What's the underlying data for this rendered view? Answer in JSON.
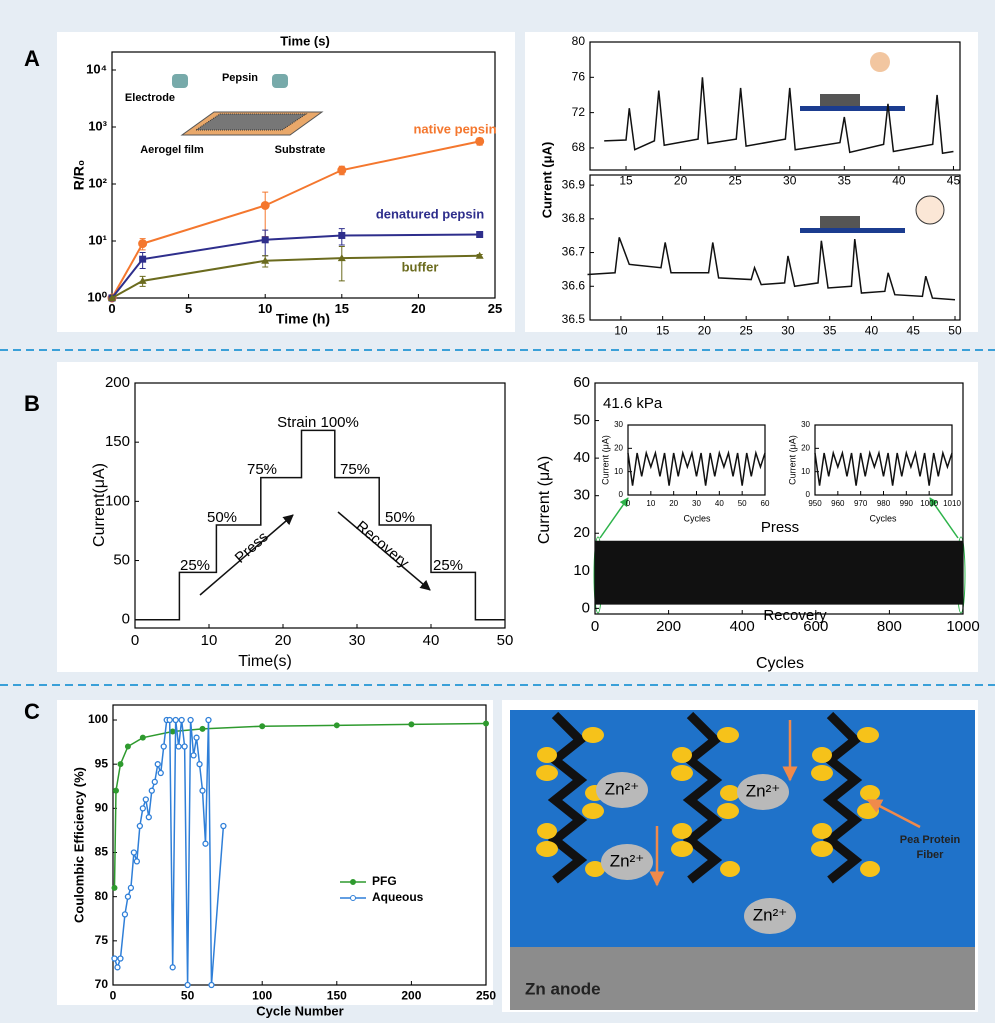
{
  "panels": [
    "A",
    "B",
    "C"
  ],
  "chart_data": [
    {
      "type": "line",
      "top_axis_label": "Time (s)",
      "x_label": "Time (h)",
      "y_label": "R/R₀",
      "log_y": true,
      "xlim": [
        0,
        25
      ],
      "xticks": [
        0,
        5,
        10,
        15,
        20,
        25
      ],
      "ylim": [
        1,
        10000
      ],
      "yticks": [
        {
          "value": 1,
          "label": "10⁰"
        },
        {
          "value": 10,
          "label": "10¹"
        },
        {
          "value": 100,
          "label": "10²"
        },
        {
          "value": 1000,
          "label": "10³"
        },
        {
          "value": 10000,
          "label": "10⁴"
        }
      ],
      "annotations": [
        "Pepsin",
        "Electrode",
        "Aerogel film",
        "Substrate"
      ],
      "series": [
        {
          "name": "native pepsin",
          "color": "#f4772e",
          "marker": "circle",
          "x": [
            0,
            2,
            10,
            15,
            24
          ],
          "values": [
            1,
            9,
            42,
            175,
            560
          ],
          "errors": [
            0,
            2,
            30,
            30,
            80
          ]
        },
        {
          "name": "denatured pepsin",
          "color": "#2e2e8c",
          "marker": "square",
          "x": [
            0,
            2,
            10,
            15,
            24
          ],
          "values": [
            1,
            4.8,
            10.5,
            12.5,
            13
          ],
          "errors": [
            0,
            1.5,
            5,
            4,
            0
          ]
        },
        {
          "name": "buffer",
          "color": "#6b6b1e",
          "marker": "triangle",
          "x": [
            0,
            2,
            10,
            15,
            24
          ],
          "values": [
            1,
            2,
            4.5,
            5,
            5.5
          ],
          "errors": [
            0,
            0.4,
            1,
            3,
            0.3
          ]
        }
      ]
    },
    {
      "type": "line",
      "y_label": "Current (μA)",
      "xlim": [
        11.7,
        45.6
      ],
      "xticks": [
        15,
        20,
        25,
        30,
        35,
        40,
        45
      ],
      "ylim": [
        65.5,
        80
      ],
      "yticks": [
        68,
        72,
        76,
        80
      ],
      "series": [
        {
          "color": "#111111",
          "marker": "none",
          "x": [
            13,
            15,
            15.3,
            15.8,
            17.6,
            18,
            18.5,
            21.6,
            22,
            22.5,
            25.1,
            25.5,
            26,
            29.6,
            30,
            30.5,
            34.6,
            35,
            35.5,
            38.6,
            39,
            39.5,
            43.1,
            43.5,
            44,
            45
          ],
          "values": [
            68.8,
            68.9,
            72.5,
            67.8,
            68.8,
            74.5,
            68.3,
            69,
            76,
            68.5,
            69,
            74.8,
            68.2,
            69,
            74.8,
            67.8,
            68.6,
            71.5,
            67.5,
            68.4,
            73,
            67.6,
            68.4,
            74,
            67.4,
            67.6
          ]
        }
      ]
    },
    {
      "type": "line",
      "xlim": [
        6.3,
        50.6
      ],
      "xticks": [
        10,
        15,
        20,
        25,
        30,
        35,
        40,
        45,
        50
      ],
      "ylim": [
        36.5,
        36.93
      ],
      "yticks": [
        36.5,
        36.6,
        36.7,
        36.8,
        36.9
      ],
      "series": [
        {
          "color": "#111111",
          "marker": "none",
          "x": [
            6,
            9.3,
            9.8,
            11,
            14.8,
            15.3,
            16,
            20.5,
            21,
            21.7,
            25.6,
            26,
            26.8,
            29.6,
            30,
            30.8,
            33.6,
            34,
            34.8,
            37.6,
            38,
            38.8,
            41.6,
            42,
            42.8,
            46.1,
            46.5,
            47.3,
            50
          ],
          "values": [
            36.635,
            36.64,
            36.745,
            36.665,
            36.655,
            36.73,
            36.64,
            36.64,
            36.73,
            36.625,
            36.62,
            36.655,
            36.605,
            36.61,
            36.69,
            36.6,
            36.61,
            36.735,
            36.595,
            36.6,
            36.74,
            36.58,
            36.585,
            36.64,
            36.575,
            36.57,
            36.63,
            36.565,
            36.56
          ]
        }
      ]
    },
    {
      "type": "line",
      "x_label": "Time(s)",
      "y_label": "Current(μA)",
      "xlim": [
        0,
        50
      ],
      "xticks": [
        0,
        10,
        20,
        30,
        40,
        50
      ],
      "ylim": [
        -7,
        200
      ],
      "yticks": [
        0,
        50,
        100,
        150,
        200
      ],
      "annotations": [
        "Strain 100%",
        "75%",
        "50%",
        "25%",
        "75%",
        "50%",
        "25%",
        "Press",
        "Recovery"
      ],
      "series": [
        {
          "color": "#111111",
          "marker": "none",
          "x": [
            0,
            6,
            6,
            11,
            11,
            17,
            17,
            22.5,
            22.5,
            27,
            27,
            33,
            33,
            40,
            40,
            46,
            46,
            50
          ],
          "values": [
            0,
            0,
            40,
            40,
            80,
            80,
            120,
            120,
            160,
            160,
            120,
            120,
            80,
            80,
            40,
            40,
            0,
            0
          ]
        }
      ]
    },
    {
      "type": "band",
      "x_label": "Cycles",
      "y_label": "Current (μA)",
      "xlim": [
        0,
        1000
      ],
      "xticks": [
        0,
        200,
        400,
        600,
        800,
        1000
      ],
      "ylim": [
        -1.5,
        60
      ],
      "yticks": [
        0,
        10,
        20,
        30,
        40,
        50,
        60
      ],
      "annotations": [
        "41.6 kPa",
        "Press",
        "Recovery"
      ],
      "band": {
        "color": "#111111",
        "x": [
          0,
          1000
        ],
        "low": [
          1,
          1
        ],
        "high": [
          18,
          18
        ]
      }
    },
    {
      "type": "line",
      "x_label": "Cycles",
      "y_label": "Current (μA)",
      "xlim": [
        0,
        60
      ],
      "xticks": [
        0,
        10,
        20,
        30,
        40,
        50,
        60
      ],
      "ylim": [
        0,
        30
      ],
      "yticks": [
        0,
        10,
        20,
        30
      ],
      "series": [
        {
          "color": "#111111",
          "marker": "none",
          "x": [
            0,
            2,
            4,
            6,
            8,
            10,
            12,
            14,
            16,
            18,
            20,
            22,
            24,
            26,
            28,
            30,
            32,
            34,
            36,
            38,
            40,
            42,
            44,
            46,
            48,
            50,
            52,
            54,
            56,
            58,
            60
          ],
          "values": [
            18,
            4,
            18,
            8,
            18,
            12,
            18,
            8,
            18,
            4,
            18,
            8,
            18,
            12,
            18,
            8,
            18,
            4,
            18,
            8,
            18,
            12,
            18,
            8,
            18,
            4,
            18,
            8,
            18,
            12,
            18
          ]
        }
      ]
    },
    {
      "type": "line",
      "x_label": "Cycles",
      "y_label": "Current (μA)",
      "xlim": [
        950,
        1010
      ],
      "xticks": [
        950,
        960,
        970,
        980,
        990,
        1000,
        1010
      ],
      "ylim": [
        0,
        30
      ],
      "yticks": [
        0,
        10,
        20,
        30
      ],
      "series": [
        {
          "color": "#111111",
          "marker": "none",
          "x": [
            950,
            952,
            954,
            956,
            958,
            960,
            962,
            964,
            966,
            968,
            970,
            972,
            974,
            976,
            978,
            980,
            982,
            984,
            986,
            988,
            990,
            992,
            994,
            996,
            998,
            1000,
            1002,
            1004,
            1006,
            1008,
            1010
          ],
          "values": [
            18,
            4,
            18,
            8,
            18,
            12,
            18,
            8,
            18,
            4,
            18,
            8,
            18,
            12,
            18,
            8,
            18,
            4,
            18,
            8,
            18,
            12,
            18,
            8,
            18,
            4,
            18,
            8,
            18,
            12,
            18
          ]
        }
      ]
    },
    {
      "type": "line",
      "x_label": "Cycle Number",
      "y_label": "Coulombic Efficiency (%)",
      "legend": true,
      "xlim": [
        0,
        250
      ],
      "xticks": [
        0,
        50,
        100,
        150,
        200,
        250
      ],
      "ylim": [
        70,
        101.7
      ],
      "yticks": [
        70,
        75,
        80,
        85,
        90,
        95,
        100
      ],
      "series": [
        {
          "name": "PFG",
          "color": "#2e9a2e",
          "marker": "circle",
          "x": [
            1,
            2,
            5,
            10,
            20,
            40,
            60,
            100,
            150,
            200,
            250
          ],
          "values": [
            81,
            92,
            95,
            97,
            98,
            98.7,
            99,
            99.3,
            99.4,
            99.5,
            99.6
          ]
        },
        {
          "name": "Aqueous",
          "color": "#2f7fd8",
          "marker": "circle-open",
          "x": [
            1,
            3,
            5,
            8,
            10,
            12,
            14,
            16,
            18,
            20,
            22,
            24,
            26,
            28,
            30,
            32,
            34,
            36,
            38,
            40,
            42,
            44,
            46,
            48,
            50,
            52,
            54,
            56,
            58,
            60,
            62,
            64,
            66,
            74
          ],
          "values": [
            73,
            72,
            73,
            78,
            80,
            81,
            85,
            84,
            88,
            90,
            91,
            89,
            92,
            93,
            95,
            94,
            97,
            100,
            100,
            72,
            100,
            97,
            100,
            97,
            70,
            100,
            96,
            98,
            95,
            92,
            86,
            100,
            70,
            88
          ]
        }
      ]
    }
  ],
  "diagram": {
    "ions": [
      "Zn²⁺",
      "Zn²⁺",
      "Zn²⁺",
      "Zn²⁺"
    ],
    "fiber_label": [
      "Pea Protein",
      "Fiber"
    ],
    "anode_label": "Zn anode"
  }
}
